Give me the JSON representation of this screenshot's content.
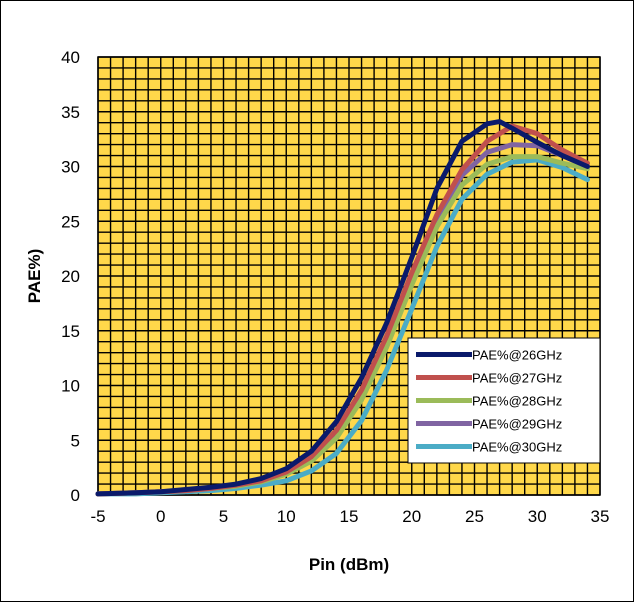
{
  "chart_data": {
    "type": "line",
    "xlabel": "Pin (dBm)",
    "ylabel": "PAE%)",
    "xlim": [
      -5,
      35
    ],
    "ylim": [
      0,
      40
    ],
    "xticks": [
      -5,
      0,
      5,
      10,
      15,
      20,
      25,
      30,
      35
    ],
    "yticks": [
      0,
      5,
      10,
      15,
      20,
      25,
      30,
      35,
      40
    ],
    "grid": true,
    "plot_background": "#ffd84a",
    "grid_color": "#000000",
    "legend_position": "bottom-right",
    "series": [
      {
        "name": "PAE%@26GHz",
        "color": "#0a1a6b",
        "x": [
          -5,
          -2,
          0,
          2,
          4,
          6,
          8,
          10,
          12,
          14,
          16,
          18,
          20,
          22,
          24,
          26,
          27,
          28,
          30,
          32,
          34
        ],
        "y": [
          0.1,
          0.2,
          0.3,
          0.5,
          0.7,
          1.0,
          1.5,
          2.4,
          4.0,
          6.7,
          10.7,
          15.7,
          21.7,
          28.0,
          32.3,
          33.9,
          34.1,
          33.5,
          32.2,
          31.0,
          30.0
        ]
      },
      {
        "name": "PAE%@27GHz",
        "color": "#c0504d",
        "x": [
          -5,
          -2,
          0,
          2,
          4,
          6,
          8,
          10,
          12,
          14,
          16,
          18,
          20,
          22,
          24,
          26,
          28,
          30,
          32,
          34
        ],
        "y": [
          0.1,
          0.2,
          0.3,
          0.4,
          0.6,
          0.9,
          1.3,
          2.1,
          3.5,
          5.9,
          9.6,
          14.5,
          20.3,
          25.6,
          29.7,
          32.3,
          33.7,
          33.0,
          31.5,
          30.3
        ]
      },
      {
        "name": "PAE%@28GHz",
        "color": "#9bbb59",
        "x": [
          -5,
          -2,
          0,
          2,
          4,
          6,
          8,
          10,
          12,
          14,
          16,
          18,
          20,
          22,
          24,
          26,
          28,
          30,
          32,
          34
        ],
        "y": [
          0.1,
          0.2,
          0.3,
          0.4,
          0.6,
          0.8,
          1.2,
          1.9,
          3.1,
          5.2,
          8.7,
          13.5,
          19.2,
          24.5,
          28.3,
          30.2,
          30.9,
          30.9,
          30.3,
          29.8
        ]
      },
      {
        "name": "PAE%@29GHz",
        "color": "#8064a2",
        "x": [
          -5,
          -2,
          0,
          2,
          4,
          6,
          8,
          10,
          12,
          14,
          16,
          18,
          20,
          22,
          24,
          26,
          28,
          30,
          32,
          34
        ],
        "y": [
          0.1,
          0.2,
          0.3,
          0.4,
          0.6,
          0.9,
          1.3,
          2.0,
          3.4,
          5.8,
          9.5,
          14.4,
          20.0,
          25.3,
          29.2,
          31.3,
          32.0,
          31.9,
          31.0,
          30.0
        ]
      },
      {
        "name": "PAE%@30GHz",
        "color": "#4bacc6",
        "x": [
          -5,
          -2,
          0,
          2,
          4,
          6,
          8,
          10,
          12,
          14,
          16,
          18,
          20,
          22,
          24,
          26,
          28,
          30,
          32,
          34
        ],
        "y": [
          0.1,
          0.1,
          0.2,
          0.3,
          0.4,
          0.6,
          0.9,
          1.3,
          2.2,
          3.8,
          6.8,
          11.4,
          17.0,
          22.7,
          27.0,
          29.3,
          30.4,
          30.6,
          29.9,
          28.8
        ]
      }
    ]
  }
}
